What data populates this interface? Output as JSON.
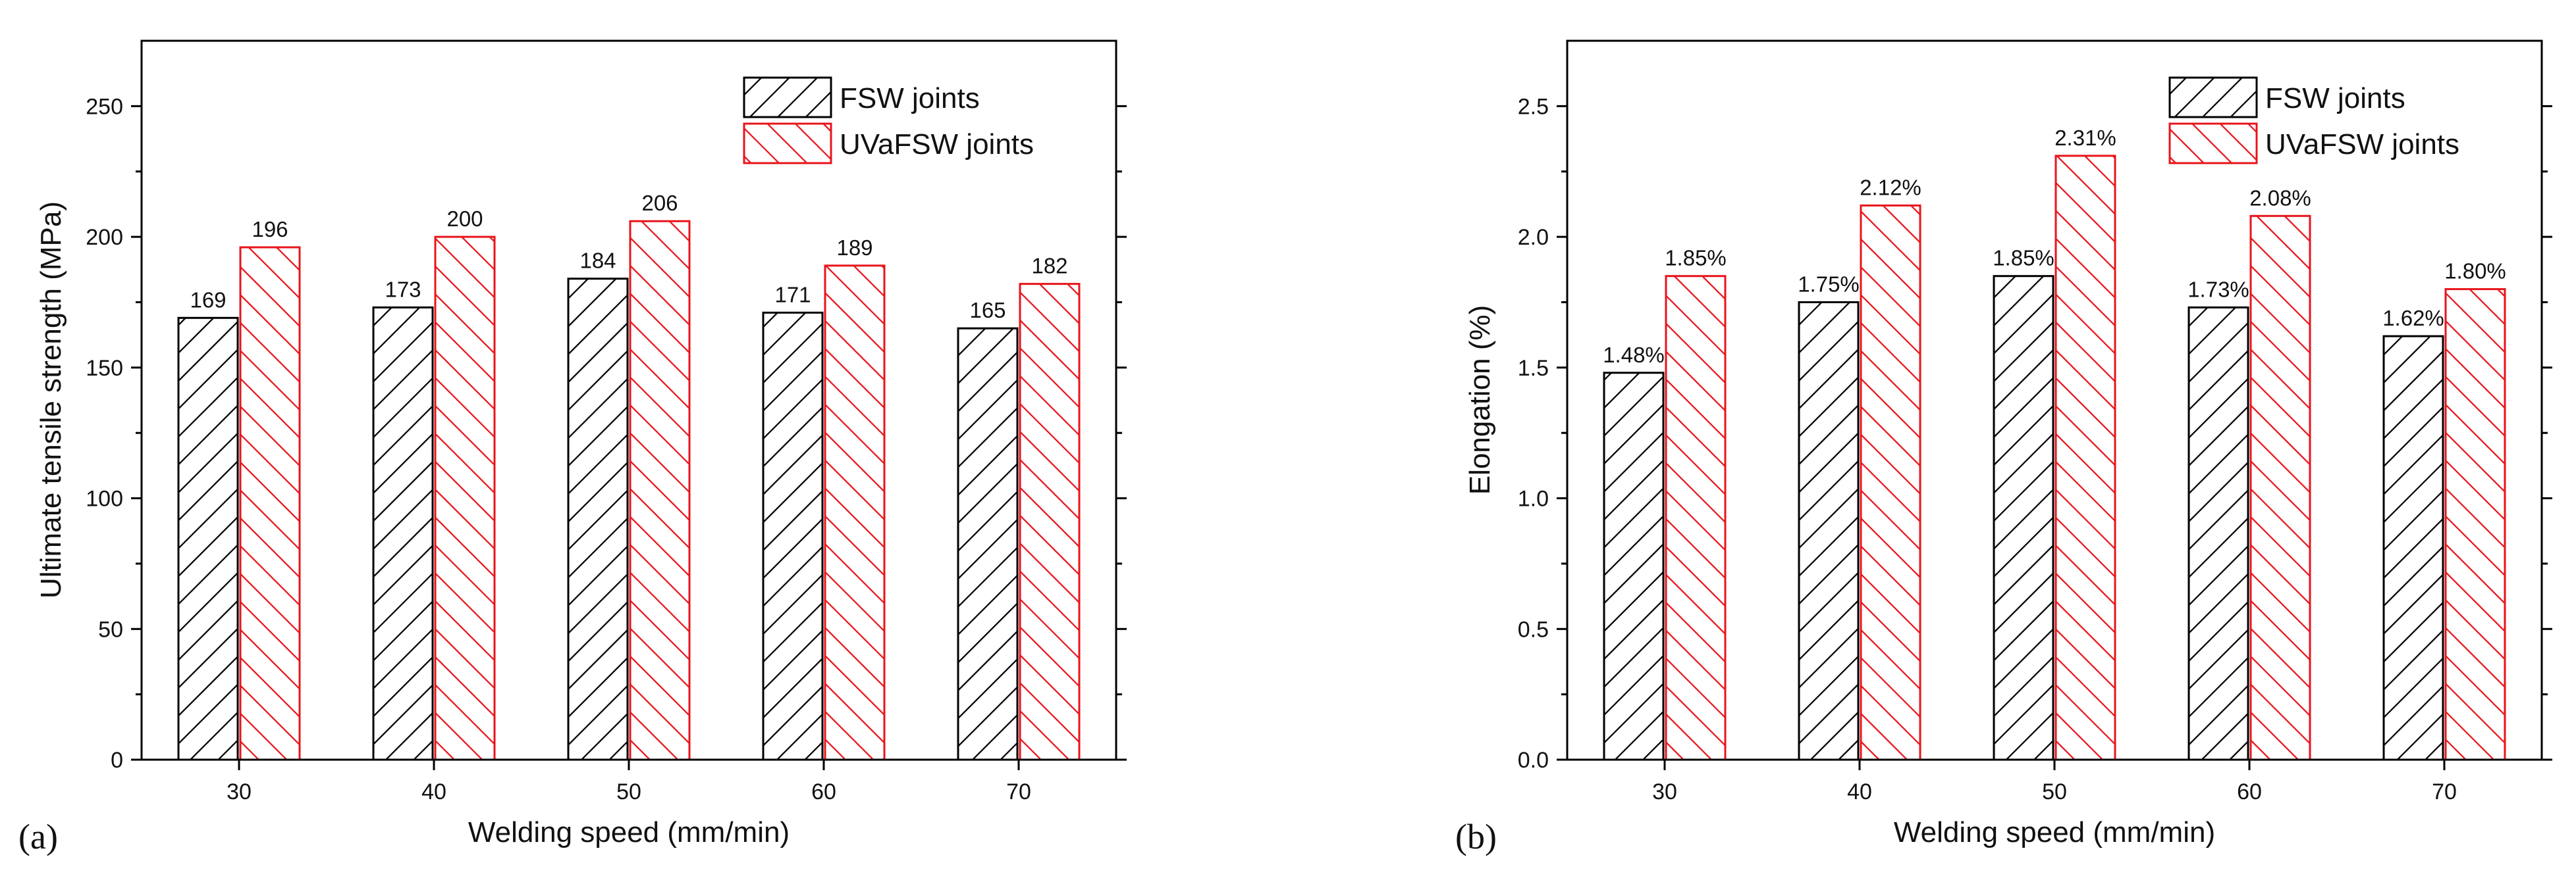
{
  "chart_data": [
    {
      "type": "bar",
      "panel_label": "(a)",
      "categories": [
        "30",
        "40",
        "50",
        "60",
        "70"
      ],
      "series": [
        {
          "name": "FSW joints",
          "values": [
            169,
            173,
            184,
            171,
            165
          ],
          "labels": [
            "169",
            "173",
            "184",
            "171",
            "165"
          ],
          "color": "#000000"
        },
        {
          "name": "UVaFSW joints",
          "values": [
            196,
            200,
            206,
            189,
            182
          ],
          "labels": [
            "196",
            "200",
            "206",
            "189",
            "182"
          ],
          "color": "#e8141b"
        }
      ],
      "xlabel": "Welding speed (mm/min)",
      "ylabel": "Ultimate tensile strength (MPa)",
      "ylim": [
        0,
        275
      ],
      "yticks": [
        0,
        50,
        100,
        150,
        200,
        250
      ],
      "ytick_labels": [
        "0",
        "50",
        "100",
        "150",
        "200",
        "250"
      ],
      "legend_position": "top-right",
      "grid": false
    },
    {
      "type": "bar",
      "panel_label": "(b)",
      "categories": [
        "30",
        "40",
        "50",
        "60",
        "70"
      ],
      "series": [
        {
          "name": "FSW joints",
          "values": [
            1.48,
            1.75,
            1.85,
            1.73,
            1.62
          ],
          "labels": [
            "1.48%",
            "1.75%",
            "1.85%",
            "1.73%",
            "1.62%"
          ],
          "color": "#000000"
        },
        {
          "name": "UVaFSW joints",
          "values": [
            1.85,
            2.12,
            2.31,
            2.08,
            1.8
          ],
          "labels": [
            "1.85%",
            "2.12%",
            "2.31%",
            "2.08%",
            "1.80%"
          ],
          "color": "#e8141b"
        }
      ],
      "xlabel": "Welding speed (mm/min)",
      "ylabel": "Elongation (%)",
      "ylim": [
        0,
        2.75
      ],
      "yticks": [
        0,
        0.5,
        1.0,
        1.5,
        2.0,
        2.5
      ],
      "ytick_labels": [
        "0.0",
        "0.5",
        "1.0",
        "1.5",
        "2.0",
        "2.5"
      ],
      "legend_position": "top-right",
      "grid": false
    }
  ]
}
